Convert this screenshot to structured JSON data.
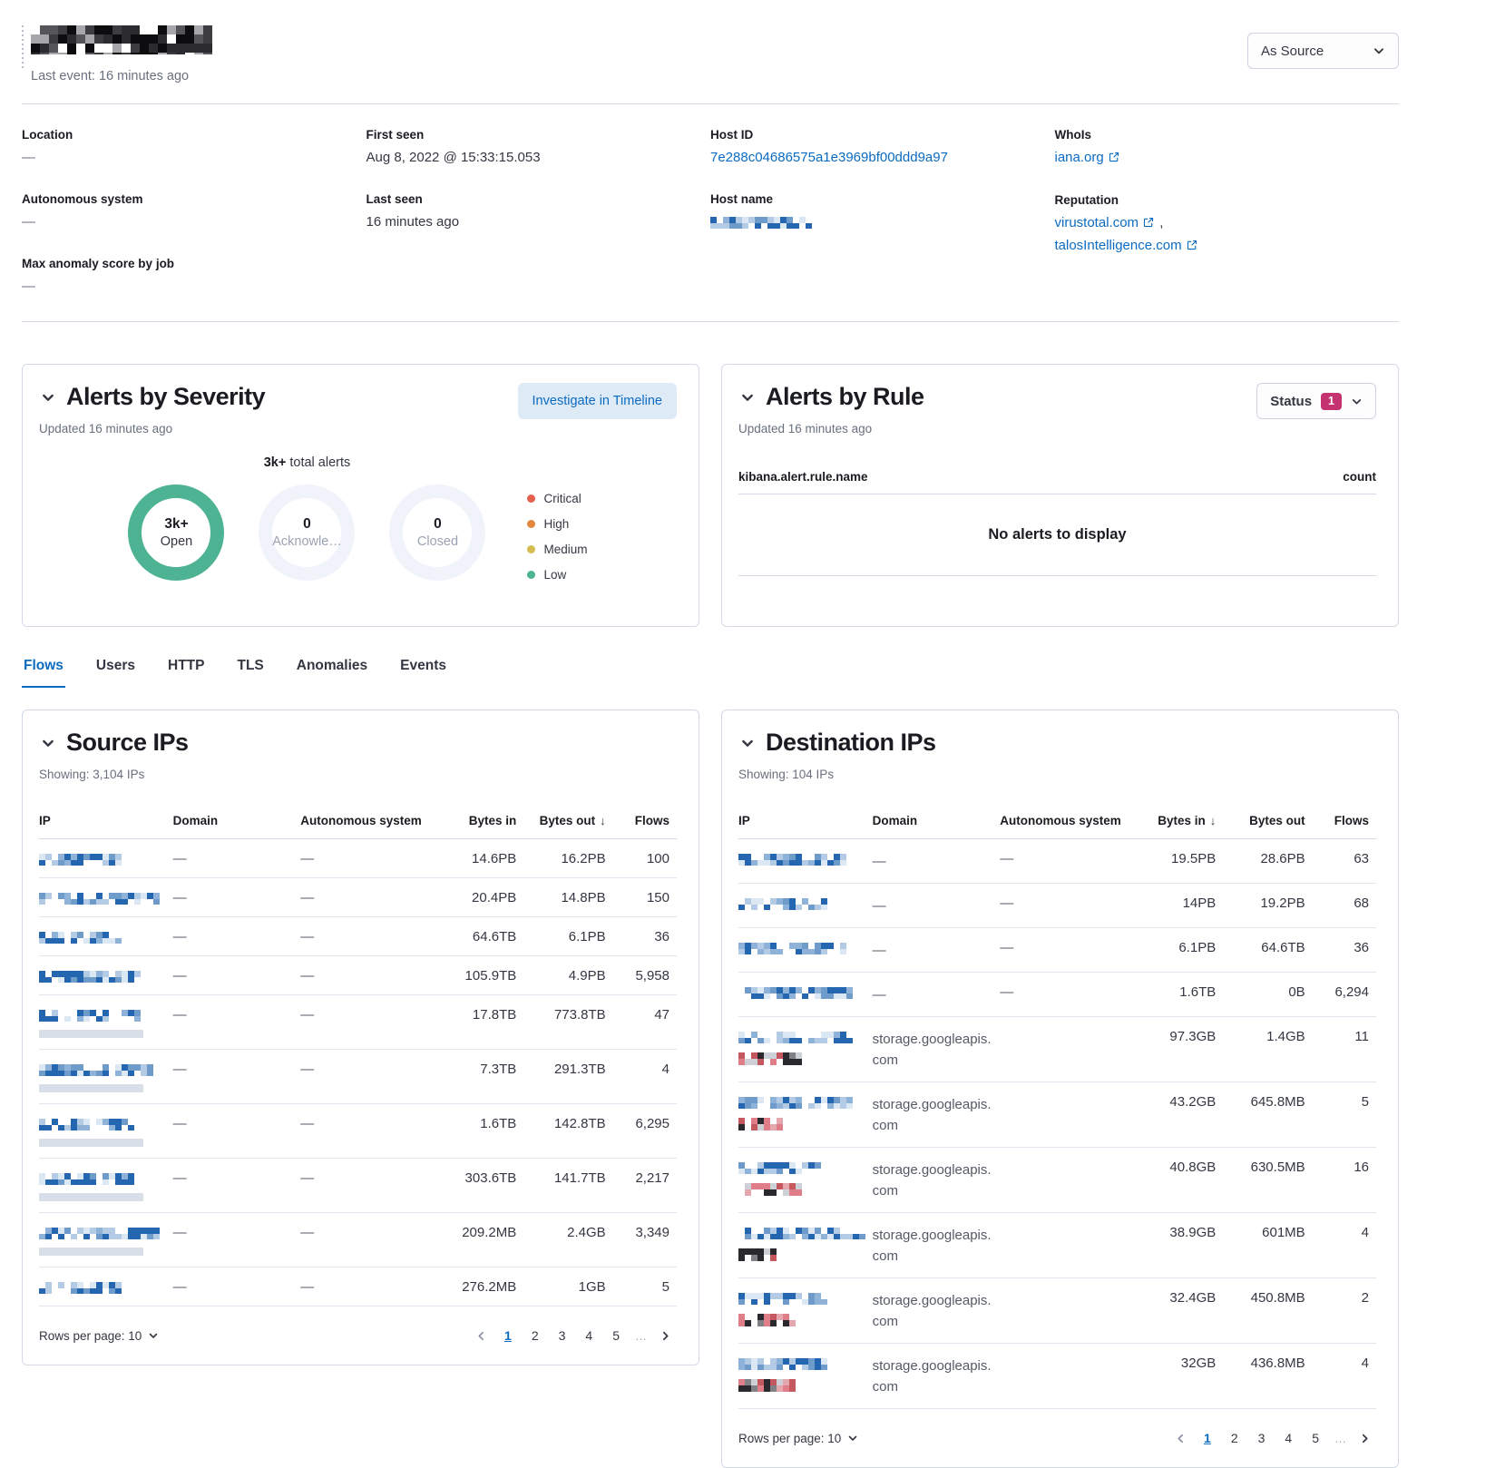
{
  "header": {
    "title_redacted": "ip-address-redacted",
    "last_event": "Last event: 16 minutes ago",
    "view_selector": "As Source"
  },
  "colors": {
    "link": "#0B6BC2",
    "active_tab": "#0B6BC2",
    "open_ring": "#4DB392",
    "status_badge": "#C4336F"
  },
  "overview": {
    "location": {
      "label": "Location",
      "value": "—"
    },
    "autonomous_system": {
      "label": "Autonomous system",
      "value": "—"
    },
    "max_anomaly": {
      "label": "Max anomaly score by job",
      "value": "—"
    },
    "first_seen": {
      "label": "First seen",
      "value": "Aug 8, 2022 @ 15:33:15.053"
    },
    "last_seen": {
      "label": "Last seen",
      "value": "16 minutes ago"
    },
    "host_id": {
      "label": "Host ID",
      "value": "7e288c04686575a1e3969bf00ddd9a97"
    },
    "host_name": {
      "label": "Host name"
    },
    "whois": {
      "label": "WhoIs",
      "value": "iana.org"
    },
    "reputation": {
      "label": "Reputation",
      "link1": "virustotal.com",
      "separator": ",",
      "link2": "talosIntelligence.com"
    }
  },
  "alerts_severity": {
    "title": "Alerts by Severity",
    "updated": "Updated 16 minutes ago",
    "investigate_button": "Investigate in Timeline",
    "total": "3k+",
    "total_suffix": " total alerts",
    "donuts": [
      {
        "value": "3k+",
        "label": "Open",
        "ring": "#4DB392"
      },
      {
        "value": "0",
        "label": "Acknowle…",
        "ring": "#F0F3FA"
      },
      {
        "value": "0",
        "label": "Closed",
        "ring": "#F0F3FA"
      }
    ],
    "legend": [
      {
        "label": "Critical",
        "color": "#E5604C"
      },
      {
        "label": "High",
        "color": "#E2873D"
      },
      {
        "label": "Medium",
        "color": "#D5BC4E"
      },
      {
        "label": "Low",
        "color": "#4DB392"
      }
    ]
  },
  "alerts_rule": {
    "title": "Alerts by Rule",
    "updated": "Updated 16 minutes ago",
    "status_label": "Status",
    "status_count": "1",
    "column_name": "kibana.alert.rule.name",
    "column_count": "count",
    "empty_message": "No alerts to display"
  },
  "tabs": {
    "items": [
      "Flows",
      "Users",
      "HTTP",
      "TLS",
      "Anomalies",
      "Events"
    ]
  },
  "source_ips": {
    "title": "Source IPs",
    "showing": "Showing: 3,104 IPs",
    "columns": {
      "ip": "IP",
      "domain": "Domain",
      "as": "Autonomous system",
      "bytes_in": "Bytes in",
      "bytes_out": "Bytes out",
      "flows": "Flows"
    },
    "sorted_by": "Bytes out (descending)",
    "rows": [
      {
        "ip_style": "blue",
        "domain": "—",
        "as": "—",
        "bytes_in": "14.6PB",
        "bytes_out": "16.2PB",
        "flows": "100"
      },
      {
        "ip_style": "blue",
        "domain": "—",
        "as": "—",
        "bytes_in": "20.4PB",
        "bytes_out": "14.8PB",
        "flows": "150"
      },
      {
        "ip_style": "blue",
        "domain": "—",
        "as": "—",
        "bytes_in": "64.6TB",
        "bytes_out": "6.1PB",
        "flows": "36"
      },
      {
        "ip_style": "blue",
        "domain": "—",
        "as": "—",
        "bytes_in": "105.9TB",
        "bytes_out": "4.9PB",
        "flows": "5,958"
      },
      {
        "ip_style": "blue-gray",
        "domain": "—",
        "as": "—",
        "bytes_in": "17.8TB",
        "bytes_out": "773.8TB",
        "flows": "47"
      },
      {
        "ip_style": "blue-gray",
        "domain": "—",
        "as": "—",
        "bytes_in": "7.3TB",
        "bytes_out": "291.3TB",
        "flows": "4"
      },
      {
        "ip_style": "blue-gray",
        "domain": "—",
        "as": "—",
        "bytes_in": "1.6TB",
        "bytes_out": "142.8TB",
        "flows": "6,295"
      },
      {
        "ip_style": "blue-gray",
        "domain": "—",
        "as": "—",
        "bytes_in": "303.6TB",
        "bytes_out": "141.7TB",
        "flows": "2,217"
      },
      {
        "ip_style": "blue-gray",
        "domain": "—",
        "as": "—",
        "bytes_in": "209.2MB",
        "bytes_out": "2.4GB",
        "flows": "3,349"
      },
      {
        "ip_style": "blue",
        "domain": "—",
        "as": "—",
        "bytes_in": "276.2MB",
        "bytes_out": "1GB",
        "flows": "5"
      }
    ]
  },
  "destination_ips": {
    "title": "Destination IPs",
    "showing": "Showing: 104 IPs",
    "columns": {
      "ip": "IP",
      "domain": "Domain",
      "as": "Autonomous system",
      "bytes_in": "Bytes in",
      "bytes_out": "Bytes out",
      "flows": "Flows"
    },
    "sorted_by": "Bytes in (descending)",
    "rows": [
      {
        "ip_style": "blue",
        "domain": "—",
        "as": "—",
        "bytes_in": "19.5PB",
        "bytes_out": "28.6PB",
        "flows": "63"
      },
      {
        "ip_style": "blue",
        "domain": "—",
        "as": "—",
        "bytes_in": "14PB",
        "bytes_out": "19.2PB",
        "flows": "68"
      },
      {
        "ip_style": "blue",
        "domain": "—",
        "as": "—",
        "bytes_in": "6.1PB",
        "bytes_out": "64.6TB",
        "flows": "36"
      },
      {
        "ip_style": "blue",
        "domain": "—",
        "as": "—",
        "bytes_in": "1.6TB",
        "bytes_out": "0B",
        "flows": "6,294"
      },
      {
        "ip_style": "blue-red",
        "domain": "storage.googleapis.com",
        "as": "",
        "bytes_in": "97.3GB",
        "bytes_out": "1.4GB",
        "flows": "11"
      },
      {
        "ip_style": "blue-red",
        "domain": "storage.googleapis.com",
        "as": "",
        "bytes_in": "43.2GB",
        "bytes_out": "645.8MB",
        "flows": "5"
      },
      {
        "ip_style": "blue-red",
        "domain": "storage.googleapis.com",
        "as": "",
        "bytes_in": "40.8GB",
        "bytes_out": "630.5MB",
        "flows": "16"
      },
      {
        "ip_style": "blue-red",
        "domain": "storage.googleapis.com",
        "as": "",
        "bytes_in": "38.9GB",
        "bytes_out": "601MB",
        "flows": "4"
      },
      {
        "ip_style": "blue-red",
        "domain": "storage.googleapis.com",
        "as": "",
        "bytes_in": "32.4GB",
        "bytes_out": "450.8MB",
        "flows": "2"
      },
      {
        "ip_style": "blue-red",
        "domain": "storage.googleapis.com",
        "as": "",
        "bytes_in": "32GB",
        "bytes_out": "436.8MB",
        "flows": "4"
      }
    ]
  },
  "pagination": {
    "rows_per_page": "Rows per page: 10",
    "pages": [
      "1",
      "2",
      "3",
      "4",
      "5"
    ],
    "ellipsis": "…"
  }
}
